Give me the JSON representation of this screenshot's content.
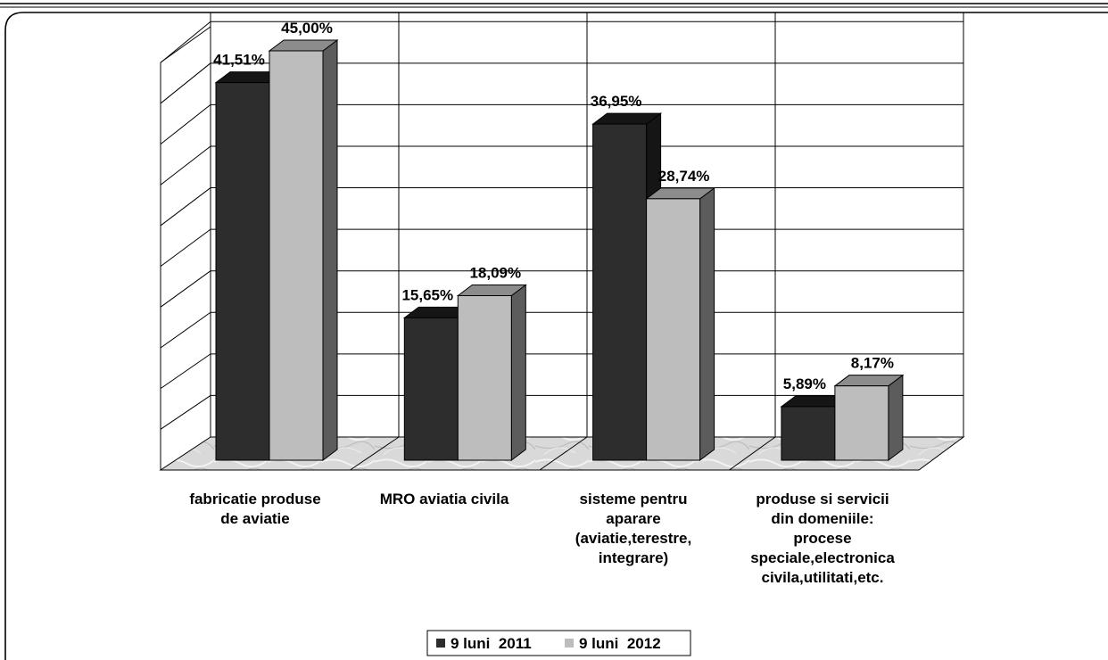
{
  "colors": {
    "series_2011": "#2d2d2d",
    "series_2011_side": "#151515",
    "series_2012": "#bdbdbd",
    "series_2012_side": "#5c5c5c",
    "frame": "#000000",
    "floor": "#d8d8d8"
  },
  "chart_data": {
    "type": "bar",
    "title": "",
    "xlabel": "",
    "ylabel": "",
    "ylim": [
      0,
      45
    ],
    "grid": true,
    "legend_position": "bottom",
    "categories": [
      "fabricatie produse de aviatie",
      "MRO aviatia civila",
      "sisteme pentru aparare (aviatie,terestre, integrare)",
      "produse si servicii din domeniile: procese speciale,electronica civila,utilitati,etc."
    ],
    "category_lines": [
      [
        "fabricatie produse",
        "de aviatie"
      ],
      [
        "MRO aviatia civila"
      ],
      [
        "sisteme pentru",
        "aparare",
        "(aviatie,terestre,",
        "integrare)"
      ],
      [
        "produse si servicii",
        "din domeniile:",
        "procese",
        "speciale,electronica",
        "civila,utilitati,etc."
      ]
    ],
    "series": [
      {
        "name": "9 luni  2011",
        "values": [
          41.51,
          15.65,
          36.95,
          5.89
        ],
        "labels": [
          "41,51%",
          "15,65%",
          "36,95%",
          "5,89%"
        ]
      },
      {
        "name": "9 luni  2012",
        "values": [
          45.0,
          18.09,
          28.74,
          8.17
        ],
        "labels": [
          "45,00%",
          "18,09%",
          "28,74%",
          "8,17%"
        ]
      }
    ]
  }
}
